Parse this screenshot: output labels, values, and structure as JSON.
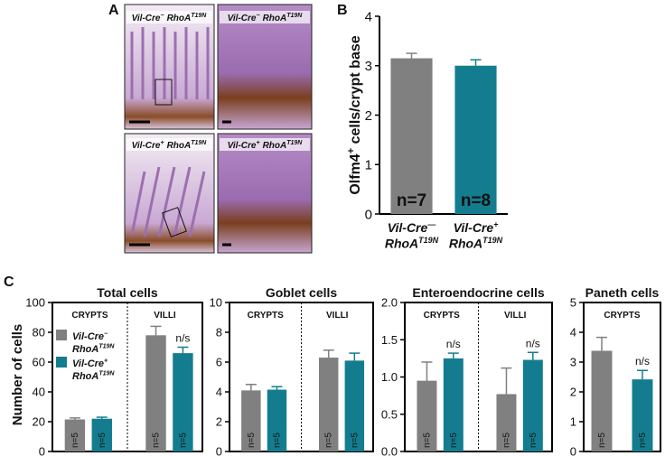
{
  "panel_labels": [
    "A",
    "B",
    "C"
  ],
  "micrographs": [
    {
      "gene": "Vil-Cre",
      "gene_sup": "−",
      "allele": "RhoA",
      "allele_sup": "T19N"
    },
    {
      "gene": "Vil-Cre",
      "gene_sup": "−",
      "allele": "RhoA",
      "allele_sup": "T19N"
    },
    {
      "gene": "Vil-Cre",
      "gene_sup": "+",
      "allele": "RhoA",
      "allele_sup": "T19N"
    },
    {
      "gene": "Vil-Cre",
      "gene_sup": "+",
      "allele": "RhoA",
      "allele_sup": "T19N"
    }
  ],
  "c_y_label": "Number of cells",
  "chart_data": [
    {
      "type": "bar",
      "y_label": "Olfm4",
      "y_label_sup": "+",
      "y_label_rest": " cells/crypt base",
      "categories": [
        {
          "gene": "Vil-Cre",
          "gene_sup": "—",
          "allele": "RhoA",
          "allele_sup": "T19N"
        },
        {
          "gene": "Vil-Cre",
          "gene_sup": "+",
          "allele": "RhoA",
          "allele_sup": "T19N"
        }
      ],
      "values": [
        3.15,
        3.0
      ],
      "errors": [
        0.1,
        0.12
      ],
      "colors": [
        "#808080",
        "#137d8f"
      ],
      "annotations": [
        "n=7",
        "n=8"
      ],
      "ylim": [
        0,
        4
      ],
      "yticks": [
        0,
        1,
        2,
        3,
        4
      ]
    },
    {
      "type": "grouped_bar",
      "title": "Total cells",
      "groups": [
        "CRYPTS",
        "VILLI"
      ],
      "legend": "left",
      "series": [
        {
          "name": {
            "gene": "Vil-Cre",
            "gene_sup": "−",
            "allele": "RhoA",
            "allele_sup": "T19N"
          },
          "color": "#808080",
          "values": [
            21.5,
            78
          ],
          "errors": [
            1,
            6
          ],
          "n_labels": [
            "n=5",
            "n=5"
          ]
        },
        {
          "name": {
            "gene": "Vil-Cre",
            "gene_sup": "+",
            "allele": "RhoA",
            "allele_sup": "T19N"
          },
          "color": "#137d8f",
          "values": [
            22,
            66
          ],
          "errors": [
            1,
            4
          ],
          "n_labels": [
            "n=5",
            "n=5"
          ],
          "sig": [
            null,
            "n/s"
          ]
        }
      ],
      "ylim": [
        0,
        100
      ],
      "yticks": [
        0,
        20,
        40,
        60,
        80,
        100
      ]
    },
    {
      "type": "grouped_bar",
      "title": "Goblet cells",
      "groups": [
        "CRYPTS",
        "VILLI"
      ],
      "series": [
        {
          "color": "#808080",
          "values": [
            4.1,
            6.3
          ],
          "errors": [
            0.4,
            0.5
          ],
          "n_labels": [
            "n=5",
            "n=5"
          ]
        },
        {
          "color": "#137d8f",
          "values": [
            4.15,
            6.1
          ],
          "errors": [
            0.2,
            0.5
          ],
          "n_labels": [
            "n=5",
            "n=5"
          ]
        }
      ],
      "ylim": [
        0,
        10
      ],
      "yticks": [
        0,
        2,
        4,
        6,
        8,
        10
      ]
    },
    {
      "type": "grouped_bar",
      "title": "Enteroendocrine cells",
      "groups": [
        "CRYPTS",
        "VILLI"
      ],
      "series": [
        {
          "color": "#808080",
          "values": [
            0.95,
            0.77
          ],
          "errors": [
            0.25,
            0.35
          ],
          "n_labels": [
            "n=5",
            "n=5"
          ]
        },
        {
          "color": "#137d8f",
          "values": [
            1.25,
            1.23
          ],
          "errors": [
            0.07,
            0.1
          ],
          "n_labels": [
            "n=5",
            "n=5"
          ],
          "sig": [
            "n/s",
            "n/s"
          ]
        }
      ],
      "ylim": [
        0,
        2
      ],
      "yticks": [
        {
          "value": 0,
          "label": "0.0"
        },
        0.5,
        {
          "value": 1,
          "label": "1.0"
        },
        1.5,
        {
          "value": 2,
          "label": "2.0"
        }
      ]
    },
    {
      "type": "grouped_bar",
      "title": "Paneth cells",
      "groups": [
        "CRYPTS"
      ],
      "series": [
        {
          "color": "#808080",
          "values": [
            3.38
          ],
          "errors": [
            0.45
          ],
          "n_labels": [
            "n=5"
          ]
        },
        {
          "color": "#137d8f",
          "values": [
            2.42
          ],
          "errors": [
            0.3
          ],
          "n_labels": [
            "n=5"
          ],
          "sig": [
            "n/s"
          ]
        }
      ],
      "ylim": [
        0,
        5
      ],
      "yticks": [
        0,
        1,
        2,
        3,
        4,
        5
      ]
    }
  ]
}
